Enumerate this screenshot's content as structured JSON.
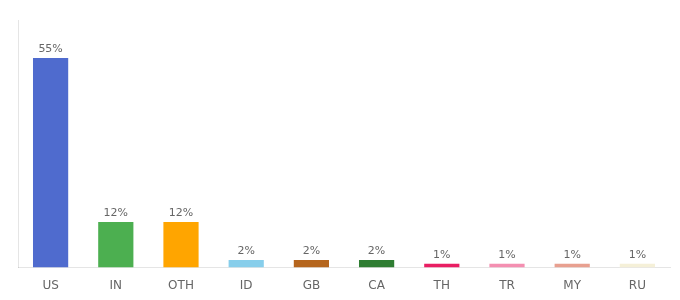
{
  "chart_data": {
    "type": "bar",
    "categories": [
      "US",
      "IN",
      "OTH",
      "ID",
      "GB",
      "CA",
      "TH",
      "TR",
      "MY",
      "RU"
    ],
    "values": [
      55,
      12,
      12,
      2,
      2,
      2,
      1,
      1,
      1,
      1
    ],
    "value_labels": [
      "55%",
      "12%",
      "12%",
      "2%",
      "2%",
      "2%",
      "1%",
      "1%",
      "1%",
      "1%"
    ],
    "colors": [
      "#4f6bce",
      "#4caf50",
      "#ffa500",
      "#87ceeb",
      "#b5651d",
      "#2e7d32",
      "#e91e63",
      "#f48fb1",
      "#e8a090",
      "#f5f0d8"
    ],
    "ylim": [
      0,
      65
    ],
    "data_labels": true,
    "grid": false,
    "tick_labels": "x"
  }
}
